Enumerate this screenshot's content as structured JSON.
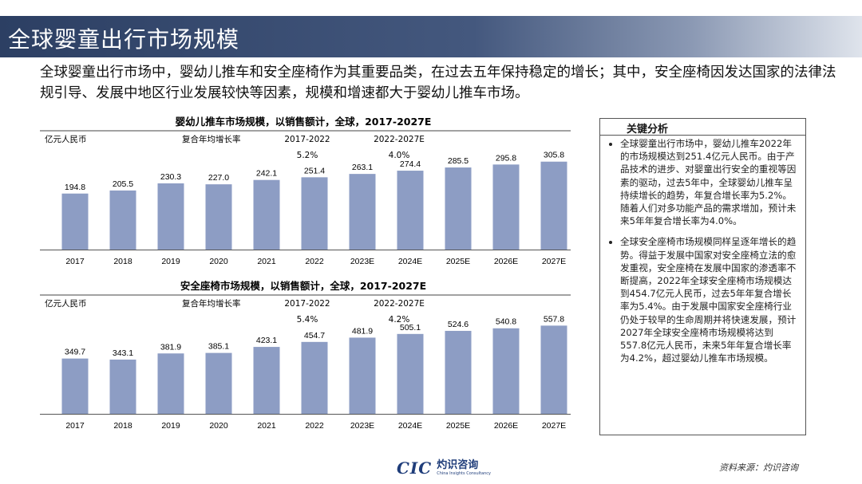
{
  "page": {
    "title": "全球婴童出行市场规模",
    "intro": "全球婴童出行市场中，婴幼儿推车和安全座椅作为其重要品类，在过去五年保持稳定的增长；其中，安全座椅因发达国家的法律法规引导、发展中地区行业发展较快等因素，规模和增速都大于婴幼儿推车市场。",
    "source": "资料来源：灼识咨询",
    "logo": {
      "mark": "CIC",
      "cn": "灼识咨询",
      "en": "China Insights Consultancy"
    }
  },
  "colors": {
    "bar": "#8d9dc4",
    "title_bar": "#2c3f63"
  },
  "chart_data": [
    {
      "type": "bar",
      "title": "婴幼儿推车市场规模，以销售额计，全球，2017-2027E",
      "unit_label": "亿元人民币",
      "cagr_label": "复合年均增长率",
      "cagr": [
        {
          "period": "2017-2022",
          "value": "5.2%"
        },
        {
          "period": "2022-2027E",
          "value": "4.0%"
        }
      ],
      "categories": [
        "2017",
        "2018",
        "2019",
        "2020",
        "2021",
        "2022",
        "2023E",
        "2024E",
        "2025E",
        "2026E",
        "2027E"
      ],
      "values": [
        194.8,
        205.5,
        230.3,
        227.0,
        242.1,
        251.4,
        263.1,
        274.4,
        285.5,
        295.8,
        305.8
      ],
      "labels": [
        "194.8",
        "205.5",
        "230.3",
        "227.0",
        "242.1",
        "251.4",
        "263.1",
        "274.4",
        "285.5",
        "295.8",
        "305.8"
      ],
      "ylim": [
        0,
        330
      ]
    },
    {
      "type": "bar",
      "title": "安全座椅市场规模，以销售额计，全球，2017-2027E",
      "unit_label": "亿元人民币",
      "cagr_label": "复合年均增长率",
      "cagr": [
        {
          "period": "2017-2022",
          "value": "5.4%"
        },
        {
          "period": "2022-2027E",
          "value": "4.2%"
        }
      ],
      "categories": [
        "2017",
        "2018",
        "2019",
        "2020",
        "2021",
        "2022",
        "2023E",
        "2024E",
        "2025E",
        "2026E",
        "2027E"
      ],
      "values": [
        349.7,
        343.1,
        381.9,
        385.1,
        423.1,
        454.7,
        481.9,
        505.1,
        524.6,
        540.8,
        557.8
      ],
      "labels": [
        "349.7",
        "343.1",
        "381.9",
        "385.1",
        "423.1",
        "454.7",
        "481.9",
        "505.1",
        "524.6",
        "540.8",
        "557.8"
      ],
      "ylim": [
        0,
        600
      ]
    }
  ],
  "analysis": {
    "heading": "关键分析",
    "bullets": [
      "全球婴童出行市场中，婴幼儿推车2022年的市场规模达到251.4亿元人民币。由于产品技术的进步、对婴童出行安全的重视等因素的驱动，过去5年中，全球婴幼儿推车呈持续增长的趋势，年复合增长率为5.2%。随着人们对多功能产品的需求增加，预计未来5年年复合增长率为4.0%。",
      "全球安全座椅市场规模同样呈逐年增长的趋势。得益于发展中国家对安全座椅立法的愈发重视，安全座椅在发展中国家的渗透率不断提高，2022年全球安全座椅市场规模达到454.7亿元人民币，过去5年年复合增长率为5.4%。由于发展中国家安全座椅行业仍处于较早的生命周期并将快速发展，预计2027年全球安全座椅市场规模将达到557.8亿元人民币，未来5年年复合增长率为4.2%，超过婴幼儿推车市场规模。"
    ]
  }
}
